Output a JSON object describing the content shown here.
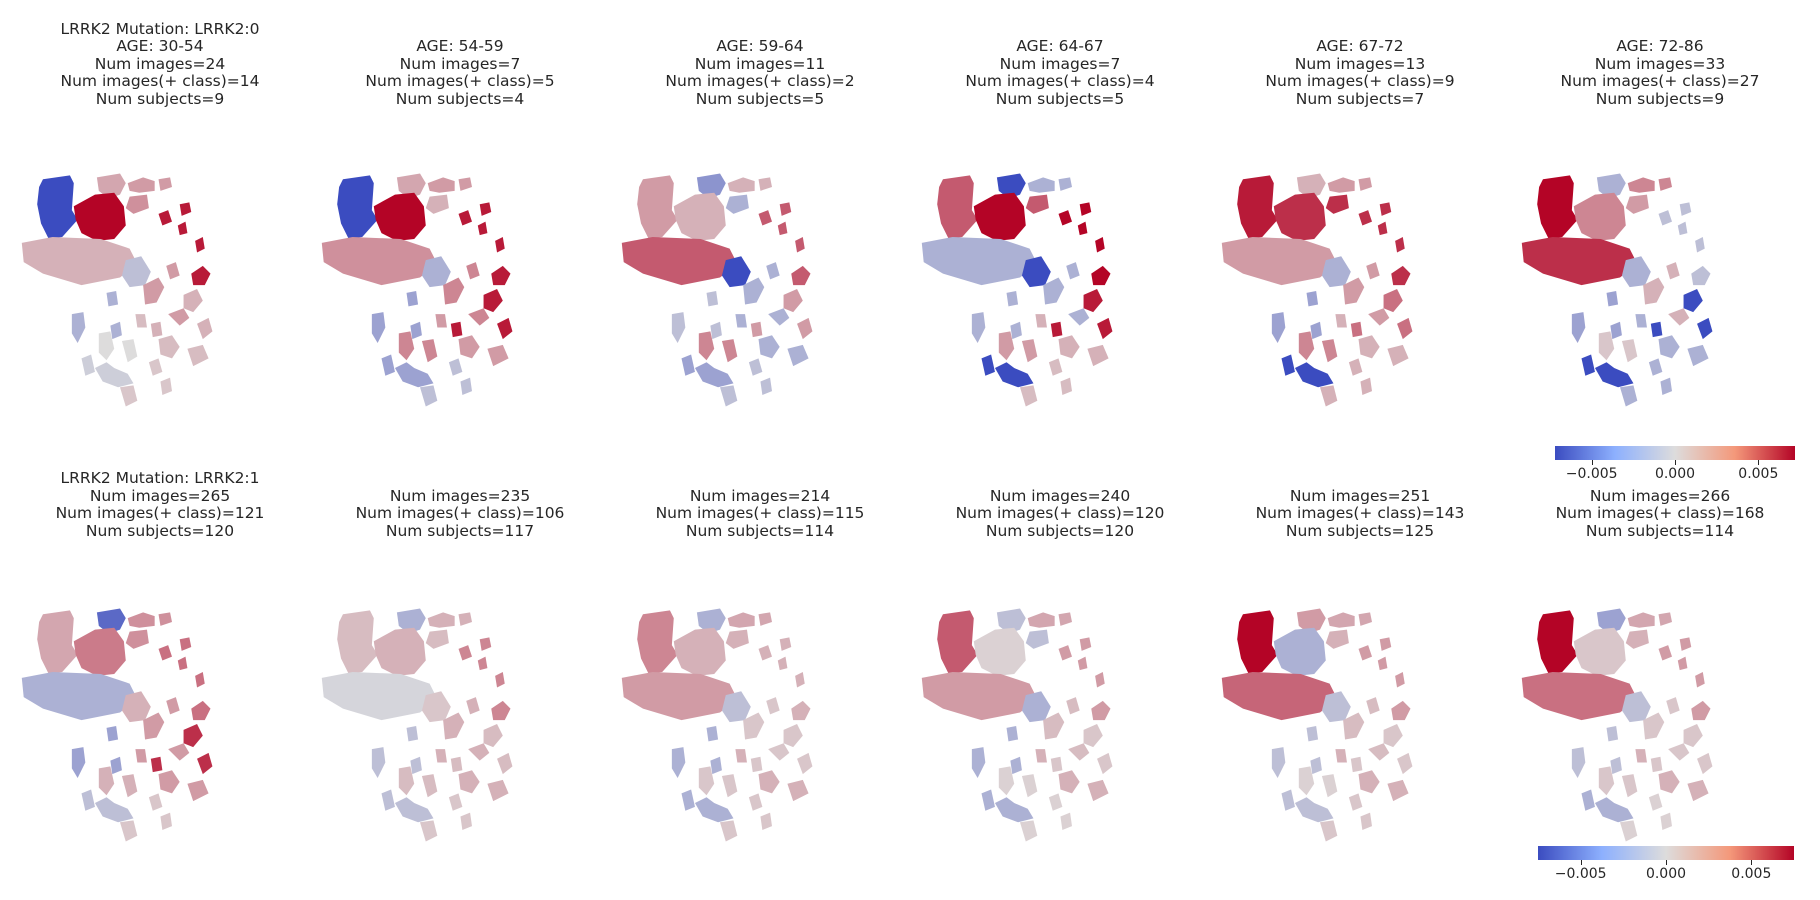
{
  "figure": {
    "colormap": "coolwarm",
    "colors": {
      "low": "#3b4cc0",
      "mid": "#dddcdc",
      "high": "#b40426"
    },
    "rows": [
      {
        "panels": [
          {
            "lines": [
              "LRRK2 Mutation: LRRK2:0",
              "AGE: 30-54",
              "Num images=24",
              "Num images(+ class)=14",
              "Num subjects=9"
            ],
            "regions": [
              -1,
              0.25,
              1,
              0.3,
              0.35,
              0.2,
              -0.2,
              0.9,
              0.3,
              -0.3,
              0.2,
              0.15,
              -0.1,
              0,
              0.1
            ]
          },
          {
            "lines": [
              "AGE: 54-59",
              "Num images=7",
              "Num images(+ class)=5",
              "Num subjects=4"
            ],
            "regions": [
              -1,
              0.25,
              1,
              0.3,
              0.2,
              0.35,
              -0.3,
              0.9,
              0.4,
              -0.4,
              0.9,
              0.3,
              -0.4,
              0.4,
              -0.2
            ]
          },
          {
            "lines": [
              "AGE: 59-64",
              "Num images=11",
              "Num images(+ class)=2",
              "Num subjects=5"
            ],
            "regions": [
              0.3,
              -0.5,
              0.2,
              0.2,
              -0.3,
              0.6,
              -1,
              0.6,
              -0.3,
              -0.2,
              0.3,
              -0.3,
              -0.4,
              0.4,
              -0.2
            ]
          },
          {
            "lines": [
              "AGE: 64-67",
              "Num images=7",
              "Num images(+ class)=4",
              "Num subjects=5"
            ],
            "regions": [
              0.6,
              -1,
              1,
              -0.3,
              0.6,
              -0.3,
              -1,
              1,
              -0.3,
              -0.3,
              0.9,
              0.2,
              -1,
              0.3,
              0.15
            ]
          },
          {
            "lines": [
              "AGE: 67-72",
              "Num images=13",
              "Num images(+ class)=9",
              "Num subjects=7"
            ],
            "regions": [
              0.9,
              0.2,
              0.8,
              0.3,
              0.8,
              0.3,
              -0.3,
              0.8,
              0.3,
              -0.4,
              0.5,
              0.2,
              -1,
              0.4,
              0.2
            ]
          },
          {
            "lines": [
              "AGE: 72-86",
              "Num images=33",
              "Num images(+ class)=27",
              "Num subjects=9"
            ],
            "regions": [
              1,
              -0.3,
              0.4,
              0.4,
              0.3,
              0.8,
              -0.3,
              -0.2,
              0.2,
              -0.4,
              -1,
              -0.3,
              -1,
              0.1,
              -0.3
            ]
          }
        ],
        "colorbar": {
          "ticks": [
            "−0.005",
            "0.000",
            "0.005"
          ]
        }
      },
      {
        "panels": [
          {
            "lines": [
              "LRRK2 Mutation: LRRK2:1",
              "Num images=265",
              "Num images(+ class)=121",
              "Num subjects=120"
            ],
            "regions": [
              0.25,
              -0.8,
              0.45,
              0.35,
              0.35,
              -0.3,
              0.2,
              0.5,
              0.3,
              -0.4,
              0.8,
              0.3,
              -0.2,
              0.2,
              0.1
            ]
          },
          {
            "lines": [
              "Num images=235",
              "Num images(+ class)=106",
              "Num subjects=117"
            ],
            "regions": [
              0.15,
              -0.3,
              0.2,
              0.2,
              0.15,
              -0.05,
              0.1,
              0.4,
              0.2,
              -0.2,
              0.15,
              0.2,
              -0.2,
              0.15,
              0.1
            ]
          },
          {
            "lines": [
              "Num images=214",
              "Num images(+ class)=115",
              "Num subjects=114"
            ],
            "regions": [
              0.4,
              -0.3,
              0.2,
              0.25,
              0.2,
              0.3,
              -0.2,
              0.2,
              0.1,
              -0.3,
              0.1,
              0.2,
              -0.3,
              0.1,
              0.1
            ]
          },
          {
            "lines": [
              "Num images=240",
              "Num images(+ class)=120",
              "Num subjects=120"
            ],
            "regions": [
              0.6,
              -0.2,
              0.05,
              0.25,
              -0.2,
              0.3,
              -0.3,
              0.3,
              0.15,
              -0.3,
              0.1,
              0.2,
              -0.3,
              0.05,
              0.05
            ]
          },
          {
            "lines": [
              "Num images=251",
              "Num images(+ class)=143",
              "Num subjects=125"
            ],
            "regions": [
              1,
              0.3,
              -0.3,
              0.25,
              0.2,
              0.55,
              -0.2,
              0.3,
              0.15,
              -0.2,
              0.1,
              0.2,
              -0.2,
              0.05,
              0.1
            ]
          },
          {
            "lines": [
              "Num images=266",
              "Num images(+ class)=168",
              "Num subjects=114"
            ],
            "regions": [
              1,
              -0.4,
              0.1,
              0.25,
              0.2,
              0.5,
              -0.2,
              0.3,
              0.1,
              -0.2,
              0.1,
              0.2,
              -0.3,
              0.1,
              0.05
            ]
          }
        ],
        "colorbar": {
          "ticks": [
            "−0.005",
            "0.000",
            "0.005"
          ]
        }
      }
    ]
  }
}
